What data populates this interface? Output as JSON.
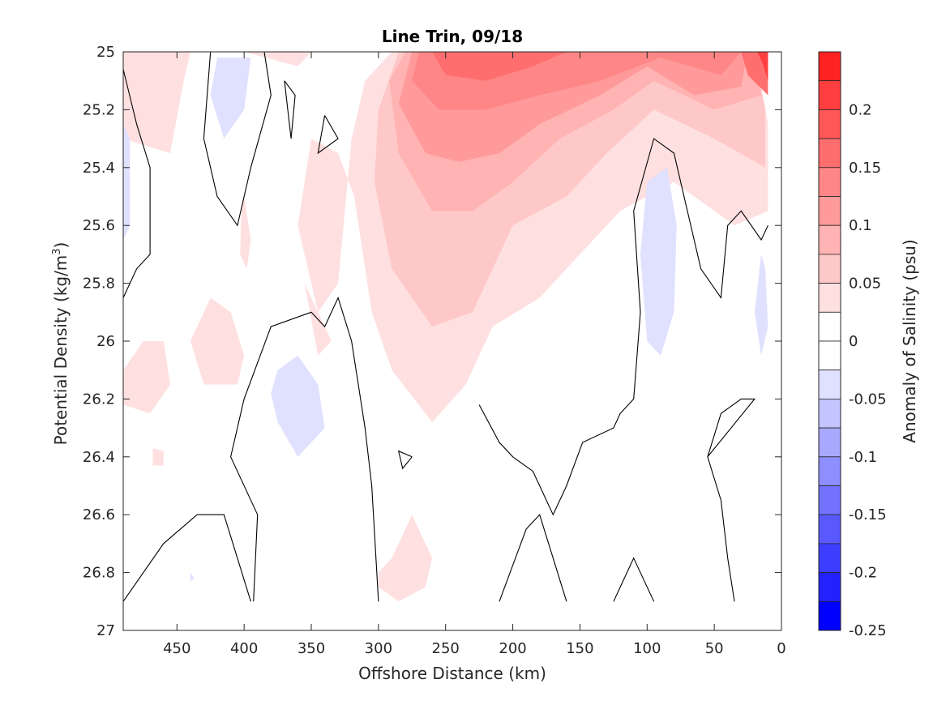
{
  "chart_data": {
    "type": "contour",
    "title": "Line Trin, 09/18",
    "xlabel": "Offshore Distance (km)",
    "ylabel_main": "Potential Density (kg/m",
    "ylabel_sup": "3",
    "ylabel_close": ")",
    "xlim": [
      490,
      0
    ],
    "x_reversed": true,
    "ylim": [
      25,
      27
    ],
    "y_reversed": true,
    "xticks": [
      450,
      400,
      350,
      300,
      250,
      200,
      150,
      100,
      50,
      0
    ],
    "yticks": [
      25,
      25.2,
      25.4,
      25.6,
      25.8,
      26,
      26.2,
      26.4,
      26.6,
      26.8,
      27
    ],
    "xtick_labels": [
      "450",
      "400",
      "350",
      "300",
      "250",
      "200",
      "150",
      "100",
      "50",
      "0"
    ],
    "ytick_labels": [
      "25",
      "25.2",
      "25.4",
      "25.6",
      "25.8",
      "26",
      "26.2",
      "26.4",
      "26.6",
      "26.8",
      "27"
    ],
    "colorbar": {
      "label": "Anomaly of Salinity (psu)",
      "range": [
        -0.25,
        0.25
      ],
      "step": 0.025,
      "tick_values": [
        0.2,
        0.15,
        0.1,
        0.05,
        0,
        -0.05,
        -0.1,
        -0.15,
        -0.2,
        -0.25
      ],
      "tick_labels": [
        "0.2",
        "0.15",
        "0.1",
        "0.05",
        "0",
        "-0.05",
        "-0.1",
        "-0.15",
        "-0.2",
        "-0.25"
      ],
      "positive_colors": [
        "#ffffff",
        "#ffe0e0",
        "#ffc8c8",
        "#ffb3b3",
        "#ff9a9a",
        "#ff8686",
        "#ff6e6e",
        "#ff5757",
        "#ff3f3f",
        "#ff2222",
        "#ff0000"
      ],
      "negative_colors": [
        "#ffffff",
        "#e0e0ff",
        "#c4c4ff",
        "#a8a8ff",
        "#8e8eff",
        "#7272ff",
        "#5959ff",
        "#3d3dff",
        "#2222ff",
        "#0000ff"
      ]
    },
    "filled_regions": [
      {
        "level": 0.025,
        "points": [
          [
            290,
            25.0
          ],
          [
            20,
            25.0
          ],
          [
            10,
            25.25
          ],
          [
            10,
            25.55
          ],
          [
            35,
            25.6
          ],
          [
            80,
            25.45
          ],
          [
            120,
            25.55
          ],
          [
            150,
            25.7
          ],
          [
            180,
            25.85
          ],
          [
            215,
            25.95
          ],
          [
            235,
            26.15
          ],
          [
            260,
            26.28
          ],
          [
            290,
            26.1
          ],
          [
            305,
            25.9
          ],
          [
            318,
            25.5
          ],
          [
            330,
            25.35
          ],
          [
            350,
            25.3
          ],
          [
            360,
            25.6
          ],
          [
            345,
            25.9
          ],
          [
            330,
            25.8
          ],
          [
            320,
            25.3
          ],
          [
            310,
            25.1
          ]
        ]
      },
      {
        "level": 0.05,
        "points": [
          [
            285,
            25.0
          ],
          [
            20,
            25.0
          ],
          [
            12,
            25.2
          ],
          [
            12,
            25.4
          ],
          [
            50,
            25.3
          ],
          [
            95,
            25.2
          ],
          [
            130,
            25.35
          ],
          [
            160,
            25.5
          ],
          [
            200,
            25.6
          ],
          [
            230,
            25.9
          ],
          [
            260,
            25.95
          ],
          [
            290,
            25.75
          ],
          [
            303,
            25.45
          ],
          [
            300,
            25.2
          ]
        ]
      },
      {
        "level": 0.075,
        "points": [
          [
            280,
            25.0
          ],
          [
            20,
            25.0
          ],
          [
            15,
            25.15
          ],
          [
            50,
            25.2
          ],
          [
            95,
            25.1
          ],
          [
            125,
            25.2
          ],
          [
            165,
            25.3
          ],
          [
            200,
            25.45
          ],
          [
            230,
            25.55
          ],
          [
            260,
            25.55
          ],
          [
            285,
            25.35
          ],
          [
            292,
            25.1
          ]
        ]
      },
      {
        "level": 0.1,
        "points": [
          [
            275,
            25.0
          ],
          [
            25,
            25.0
          ],
          [
            30,
            25.12
          ],
          [
            65,
            25.15
          ],
          [
            100,
            25.05
          ],
          [
            135,
            25.15
          ],
          [
            180,
            25.25
          ],
          [
            210,
            25.35
          ],
          [
            240,
            25.38
          ],
          [
            265,
            25.35
          ],
          [
            285,
            25.18
          ]
        ]
      },
      {
        "level": 0.125,
        "points": [
          [
            270,
            25.0
          ],
          [
            30,
            25.0
          ],
          [
            45,
            25.08
          ],
          [
            90,
            25.02
          ],
          [
            135,
            25.1
          ],
          [
            180,
            25.15
          ],
          [
            220,
            25.2
          ],
          [
            255,
            25.2
          ],
          [
            275,
            25.1
          ]
        ]
      },
      {
        "level": 0.15,
        "points": [
          [
            260,
            25.0
          ],
          [
            160,
            25.0
          ],
          [
            185,
            25.05
          ],
          [
            220,
            25.1
          ],
          [
            250,
            25.08
          ]
        ]
      },
      {
        "level": 0.15,
        "points": [
          [
            30,
            25.0
          ],
          [
            10,
            25.0
          ],
          [
            10,
            25.15
          ],
          [
            25,
            25.08
          ]
        ]
      },
      {
        "level": 0.2,
        "points": [
          [
            18,
            25.0
          ],
          [
            10,
            25.0
          ],
          [
            10,
            25.1
          ],
          [
            14,
            25.04
          ]
        ]
      },
      {
        "level": 0.025,
        "points": [
          [
            490,
            25.0
          ],
          [
            440,
            25.0
          ],
          [
            445,
            25.1
          ],
          [
            455,
            25.35
          ],
          [
            490,
            25.3
          ]
        ]
      },
      {
        "level": 0.025,
        "points": [
          [
            400,
            25.0
          ],
          [
            350,
            25.0
          ],
          [
            360,
            25.05
          ]
        ]
      },
      {
        "level": 0.025,
        "points": [
          [
            355,
            25.8
          ],
          [
            340,
            25.95
          ],
          [
            335,
            26.0
          ],
          [
            345,
            26.05
          ]
        ]
      },
      {
        "level": 0.025,
        "points": [
          [
            425,
            25.85
          ],
          [
            410,
            25.9
          ],
          [
            400,
            26.05
          ],
          [
            405,
            26.15
          ],
          [
            430,
            26.15
          ],
          [
            440,
            26.0
          ]
        ]
      },
      {
        "level": 0.025,
        "points": [
          [
            490,
            26.1
          ],
          [
            475,
            26.0
          ],
          [
            460,
            26.0
          ],
          [
            455,
            26.15
          ],
          [
            470,
            26.25
          ],
          [
            490,
            26.22
          ]
        ]
      },
      {
        "level": 0.025,
        "points": [
          [
            300,
            26.8
          ],
          [
            290,
            26.75
          ],
          [
            275,
            26.6
          ],
          [
            260,
            26.75
          ],
          [
            265,
            26.85
          ],
          [
            285,
            26.9
          ],
          [
            300,
            26.85
          ]
        ]
      },
      {
        "level": 0.025,
        "points": [
          [
            400,
            25.5
          ],
          [
            395,
            25.65
          ],
          [
            398,
            25.75
          ],
          [
            403,
            25.7
          ],
          [
            402,
            25.55
          ]
        ]
      },
      {
        "level": 0.025,
        "points": [
          [
            468,
            26.37
          ],
          [
            460,
            26.38
          ],
          [
            460,
            26.43
          ],
          [
            468,
            26.43
          ]
        ]
      },
      {
        "level": -0.025,
        "points": [
          [
            420,
            25.02
          ],
          [
            395,
            25.02
          ],
          [
            400,
            25.2
          ],
          [
            415,
            25.3
          ],
          [
            425,
            25.15
          ]
        ]
      },
      {
        "level": -0.025,
        "points": [
          [
            490,
            25.25
          ],
          [
            485,
            25.3
          ],
          [
            485,
            25.6
          ],
          [
            490,
            25.65
          ]
        ]
      },
      {
        "level": -0.025,
        "points": [
          [
            375,
            26.1
          ],
          [
            360,
            26.05
          ],
          [
            345,
            26.15
          ],
          [
            340,
            26.3
          ],
          [
            360,
            26.4
          ],
          [
            375,
            26.28
          ],
          [
            380,
            26.18
          ]
        ]
      },
      {
        "level": -0.025,
        "points": [
          [
            100,
            25.45
          ],
          [
            85,
            25.4
          ],
          [
            78,
            25.6
          ],
          [
            80,
            25.9
          ],
          [
            90,
            26.05
          ],
          [
            100,
            26.0
          ],
          [
            105,
            25.7
          ]
        ]
      },
      {
        "level": -0.025,
        "points": [
          [
            15,
            25.7
          ],
          [
            12,
            25.75
          ],
          [
            10,
            25.95
          ],
          [
            15,
            26.05
          ],
          [
            20,
            25.9
          ]
        ]
      },
      {
        "level": -0.025,
        "points": [
          [
            440,
            26.8
          ],
          [
            437,
            26.82
          ],
          [
            440,
            26.83
          ]
        ]
      }
    ],
    "zero_contours": [
      [
        [
          490,
          25.06
        ],
        [
          480,
          25.25
        ],
        [
          470,
          25.4
        ],
        [
          470,
          25.7
        ],
        [
          480,
          25.75
        ],
        [
          490,
          25.85
        ]
      ],
      [
        [
          425,
          25.0
        ],
        [
          430,
          25.3
        ],
        [
          420,
          25.5
        ],
        [
          405,
          25.6
        ],
        [
          395,
          25.4
        ],
        [
          380,
          25.15
        ],
        [
          385,
          25.0
        ]
      ],
      [
        [
          370,
          25.1
        ],
        [
          365,
          25.3
        ],
        [
          362,
          25.15
        ],
        [
          370,
          25.1
        ]
      ],
      [
        [
          340,
          25.22
        ],
        [
          330,
          25.3
        ],
        [
          345,
          25.35
        ],
        [
          340,
          25.22
        ]
      ],
      [
        [
          490,
          26.9
        ],
        [
          460,
          26.7
        ],
        [
          435,
          26.6
        ],
        [
          415,
          26.6
        ],
        [
          395,
          26.9
        ]
      ],
      [
        [
          393,
          26.9
        ],
        [
          390,
          26.6
        ],
        [
          410,
          26.4
        ],
        [
          400,
          26.2
        ],
        [
          380,
          25.95
        ],
        [
          350,
          25.9
        ],
        [
          340,
          25.95
        ],
        [
          330,
          25.85
        ],
        [
          320,
          26.0
        ],
        [
          310,
          26.3
        ],
        [
          305,
          26.5
        ],
        [
          300,
          26.9
        ]
      ],
      [
        [
          275,
          26.4
        ],
        [
          285,
          26.38
        ],
        [
          282,
          26.44
        ],
        [
          275,
          26.4
        ]
      ],
      [
        [
          225,
          26.22
        ],
        [
          210,
          26.35
        ],
        [
          200,
          26.4
        ],
        [
          185,
          26.45
        ],
        [
          170,
          26.6
        ],
        [
          160,
          26.5
        ],
        [
          148,
          26.35
        ],
        [
          125,
          26.3
        ],
        [
          120,
          26.25
        ],
        [
          110,
          26.2
        ],
        [
          105,
          25.9
        ],
        [
          110,
          25.55
        ],
        [
          95,
          25.3
        ],
        [
          80,
          25.35
        ],
        [
          70,
          25.55
        ],
        [
          60,
          25.75
        ],
        [
          45,
          25.85
        ],
        [
          40,
          25.6
        ],
        [
          30,
          25.55
        ],
        [
          15,
          25.65
        ],
        [
          10,
          25.6
        ]
      ],
      [
        [
          210,
          26.9
        ],
        [
          190,
          26.65
        ],
        [
          180,
          26.6
        ],
        [
          160,
          26.9
        ]
      ],
      [
        [
          125,
          26.9
        ],
        [
          110,
          26.75
        ],
        [
          95,
          26.9
        ]
      ],
      [
        [
          55,
          26.4
        ],
        [
          45,
          26.25
        ],
        [
          30,
          26.2
        ],
        [
          25,
          26.2
        ],
        [
          20,
          26.2
        ],
        [
          55,
          26.4
        ],
        [
          45,
          26.55
        ],
        [
          40,
          26.75
        ],
        [
          35,
          26.9
        ]
      ]
    ]
  }
}
